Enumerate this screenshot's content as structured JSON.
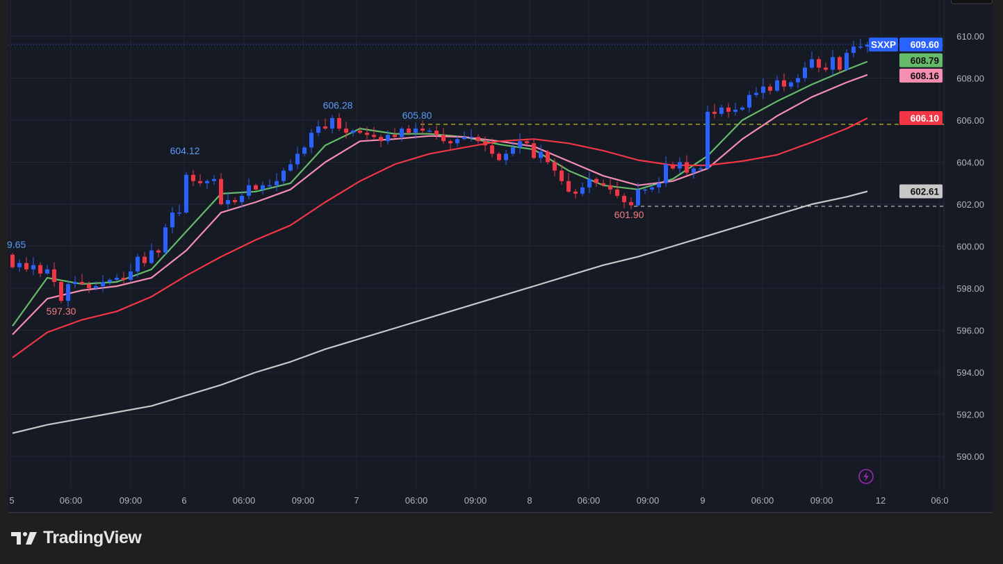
{
  "symbol": "SXXP",
  "brand": "TradingView",
  "colors": {
    "up": "#2962ff",
    "down": "#f23645",
    "ma_fast": "#66bb6a",
    "ma_mid": "#f48fb1",
    "ma_slow": "#f23645",
    "ma_long": "#c8c8c8",
    "bg": "#161a25",
    "grid": "#232733",
    "last_price_line": "#2962ff",
    "high_line": "#f0e020",
    "low_line": "#e0e0e0",
    "alert_icon": "#9c27b0"
  },
  "chart_data": {
    "type": "candlestick",
    "ylim": [
      589,
      611
    ],
    "y_ticks": [
      "610.00",
      "608.00",
      "606.00",
      "604.00",
      "602.00",
      "600.00",
      "598.00",
      "596.00",
      "594.00",
      "592.00",
      "590.00"
    ],
    "x_tick_labels": [
      "5",
      "06:00",
      "09:00",
      "6",
      "06:00",
      "09:00",
      "7",
      "06:00",
      "09:00",
      "8",
      "06:00",
      "09:00",
      "9",
      "06:00",
      "09:00",
      "12",
      "06:0"
    ],
    "first_open": 599.6,
    "closes": [
      599.0,
      599.2,
      598.9,
      599.1,
      598.7,
      598.9,
      598.3,
      597.4,
      598.2,
      598.3,
      598.2,
      598.0,
      598.1,
      598.3,
      598.4,
      598.5,
      598.4,
      598.8,
      599.5,
      599.2,
      599.8,
      599.7,
      600.9,
      601.6,
      601.6,
      603.4,
      603.1,
      603.0,
      603.1,
      603.2,
      602.0,
      602.2,
      602.1,
      602.4,
      602.9,
      602.7,
      602.9,
      602.9,
      603.1,
      603.6,
      603.9,
      604.4,
      604.7,
      605.4,
      605.7,
      605.6,
      606.1,
      605.6,
      605.4,
      605.5,
      605.4,
      605.3,
      605.2,
      605.0,
      605.3,
      605.2,
      605.6,
      605.4,
      605.6,
      605.5,
      605.5,
      605.3,
      605.0,
      604.9,
      605.1,
      605.2,
      605.2,
      605.0,
      604.8,
      604.4,
      604.1,
      604.4,
      604.7,
      605.0,
      604.9,
      604.2,
      604.5,
      604.0,
      603.6,
      603.1,
      602.6,
      602.5,
      602.8,
      603.2,
      603.0,
      602.9,
      602.7,
      602.4,
      602.1,
      601.95,
      602.7,
      602.7,
      602.8,
      603.0,
      603.9,
      603.7,
      604.0,
      603.5,
      603.7,
      603.7,
      606.4,
      606.3,
      606.6,
      606.4,
      606.5,
      606.6,
      607.2,
      607.3,
      607.6,
      607.4,
      607.9,
      607.6,
      607.8,
      608.0,
      608.5,
      608.9,
      608.5,
      608.4,
      609.0,
      608.4,
      609.2,
      609.5,
      609.5,
      609.6
    ],
    "moving_averages": [
      {
        "color_key": "ma_fast",
        "last": "608.79",
        "values": [
          596.2,
          598.5,
          598.2,
          598.3,
          598.9,
          600.7,
          602.5,
          602.6,
          603.0,
          604.8,
          605.6,
          605.35,
          605.35,
          605.2,
          604.85,
          604.6,
          603.6,
          602.9,
          602.7,
          603.2,
          604.3,
          606.0,
          606.9,
          607.7,
          608.4,
          608.79
        ]
      },
      {
        "color_key": "ma_mid",
        "last": "608.16",
        "values": [
          595.8,
          597.5,
          597.9,
          598.1,
          598.5,
          599.8,
          601.6,
          602.1,
          602.7,
          604.0,
          605.0,
          605.1,
          605.25,
          605.2,
          605.0,
          604.75,
          604.05,
          603.35,
          602.9,
          603.1,
          603.7,
          605.1,
          606.2,
          607.1,
          607.8,
          608.16
        ]
      },
      {
        "color_key": "ma_slow",
        "last": "606.10",
        "values": [
          594.7,
          595.9,
          596.5,
          596.9,
          597.6,
          598.6,
          599.5,
          600.3,
          601.0,
          602.1,
          603.1,
          603.9,
          604.4,
          604.7,
          605.0,
          605.1,
          604.9,
          604.55,
          604.1,
          603.85,
          603.85,
          604.05,
          604.35,
          604.95,
          605.6,
          606.1
        ]
      },
      {
        "color_key": "ma_long",
        "last": "602.61",
        "values": [
          591.1,
          591.5,
          591.8,
          592.1,
          592.4,
          592.9,
          593.4,
          594.0,
          594.5,
          595.1,
          595.6,
          596.1,
          596.6,
          597.1,
          597.6,
          598.1,
          598.6,
          599.1,
          599.5,
          600.0,
          600.5,
          601.0,
          601.5,
          602.0,
          602.35,
          602.61
        ]
      }
    ],
    "last_price": "609.60",
    "annotations": [
      {
        "text": "9.65",
        "price": 599.65,
        "kind": "high"
      },
      {
        "text": "597.30",
        "price": 597.3,
        "kind": "low"
      },
      {
        "text": "604.12",
        "price": 604.12,
        "kind": "high"
      },
      {
        "text": "606.28",
        "price": 606.28,
        "kind": "high"
      },
      {
        "text": "605.80",
        "price": 605.8,
        "kind": "high"
      },
      {
        "text": "601.90",
        "price": 601.9,
        "kind": "low"
      }
    ],
    "grid": true
  }
}
